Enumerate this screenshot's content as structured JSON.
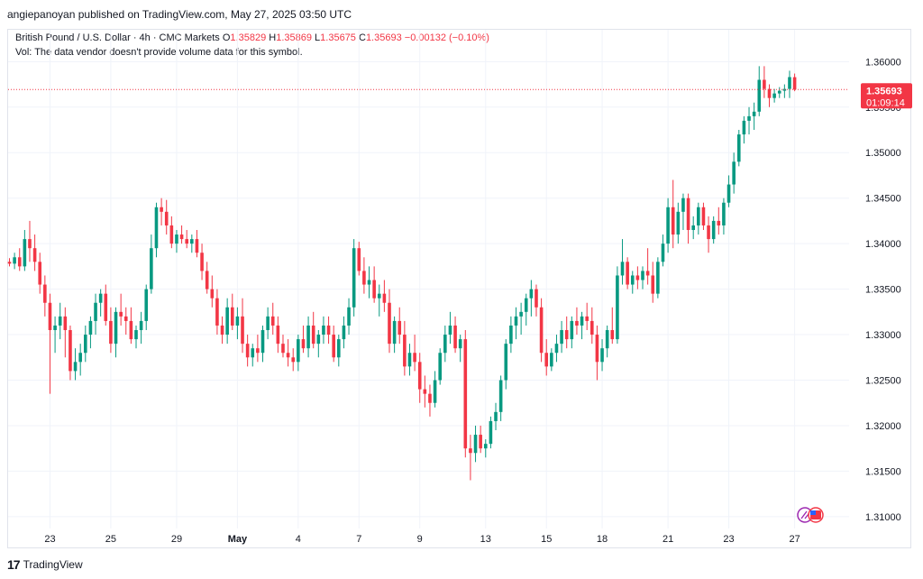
{
  "header": {
    "publisher": "angiepanoyan published on TradingView.com, May 27, 2025 03:50 UTC"
  },
  "legend": {
    "symbol": "British Pound / U.S. Dollar · 4h · CMC Markets",
    "o_label": "O",
    "o": "1.35829",
    "h_label": "H",
    "h": "1.35869",
    "l_label": "L",
    "l": "1.35675",
    "c_label": "C",
    "c": "1.35693",
    "change": "−0.00132 (−0.10%)",
    "vol_note": "Vol: The data vendor doesn't provide volume data for this symbol."
  },
  "price_tag": {
    "price": "1.35693",
    "countdown": "01:09:14",
    "color": "#f23645"
  },
  "colors": {
    "up": "#089981",
    "down": "#f23645",
    "grid": "#f0f3fa"
  },
  "footer": {
    "brand": "TradingView"
  },
  "chart_data": {
    "type": "candlestick",
    "y_ticks": [
      "1.36000",
      "1.35500",
      "1.35000",
      "1.34500",
      "1.34000",
      "1.33500",
      "1.33000",
      "1.32500",
      "1.32000",
      "1.31500",
      "1.31000"
    ],
    "ylim": [
      1.3087,
      1.3635
    ],
    "x_ticks": [
      {
        "label": "23",
        "i": 8
      },
      {
        "label": "25",
        "i": 20
      },
      {
        "label": "29",
        "i": 33
      },
      {
        "label": "May",
        "i": 45
      },
      {
        "label": "4",
        "i": 57
      },
      {
        "label": "7",
        "i": 69
      },
      {
        "label": "9",
        "i": 81
      },
      {
        "label": "13",
        "i": 94
      },
      {
        "label": "15",
        "i": 106
      },
      {
        "label": "18",
        "i": 117
      },
      {
        "label": "21",
        "i": 130
      },
      {
        "label": "23",
        "i": 142
      },
      {
        "label": "27",
        "i": 155
      }
    ],
    "last_close": 1.35693,
    "ohlc": [
      [
        1.338,
        1.3384,
        1.3375,
        1.3378
      ],
      [
        1.3378,
        1.339,
        1.3372,
        1.3385
      ],
      [
        1.3385,
        1.3395,
        1.337,
        1.3375
      ],
      [
        1.3375,
        1.3415,
        1.337,
        1.3405
      ],
      [
        1.3405,
        1.3425,
        1.338,
        1.3395
      ],
      [
        1.3395,
        1.341,
        1.337,
        1.338
      ],
      [
        1.338,
        1.339,
        1.3345,
        1.3355
      ],
      [
        1.3355,
        1.3365,
        1.332,
        1.3335
      ],
      [
        1.3335,
        1.3345,
        1.3235,
        1.3305
      ],
      [
        1.3305,
        1.332,
        1.328,
        1.331
      ],
      [
        1.331,
        1.3335,
        1.3295,
        1.332
      ],
      [
        1.332,
        1.333,
        1.3275,
        1.3305
      ],
      [
        1.3305,
        1.331,
        1.325,
        1.326
      ],
      [
        1.326,
        1.3285,
        1.325,
        1.327
      ],
      [
        1.327,
        1.329,
        1.3255,
        1.328
      ],
      [
        1.328,
        1.331,
        1.327,
        1.33
      ],
      [
        1.33,
        1.332,
        1.3285,
        1.3315
      ],
      [
        1.3315,
        1.3345,
        1.33,
        1.3335
      ],
      [
        1.3335,
        1.335,
        1.332,
        1.3345
      ],
      [
        1.3345,
        1.3355,
        1.331,
        1.3315
      ],
      [
        1.3315,
        1.333,
        1.328,
        1.329
      ],
      [
        1.329,
        1.333,
        1.3275,
        1.3325
      ],
      [
        1.3325,
        1.3345,
        1.331,
        1.332
      ],
      [
        1.332,
        1.333,
        1.33,
        1.3315
      ],
      [
        1.3315,
        1.333,
        1.329,
        1.3295
      ],
      [
        1.3295,
        1.331,
        1.3285,
        1.3305
      ],
      [
        1.3305,
        1.3325,
        1.329,
        1.3315
      ],
      [
        1.3315,
        1.3355,
        1.3305,
        1.335
      ],
      [
        1.335,
        1.341,
        1.3345,
        1.3395
      ],
      [
        1.3395,
        1.3445,
        1.3385,
        1.344
      ],
      [
        1.344,
        1.345,
        1.342,
        1.3435
      ],
      [
        1.3435,
        1.3448,
        1.341,
        1.342
      ],
      [
        1.342,
        1.343,
        1.3395,
        1.34
      ],
      [
        1.34,
        1.3415,
        1.339,
        1.341
      ],
      [
        1.341,
        1.342,
        1.34,
        1.3405
      ],
      [
        1.3405,
        1.3415,
        1.3395,
        1.34
      ],
      [
        1.34,
        1.341,
        1.339,
        1.3405
      ],
      [
        1.3405,
        1.3415,
        1.3385,
        1.339
      ],
      [
        1.339,
        1.34,
        1.336,
        1.337
      ],
      [
        1.337,
        1.338,
        1.3345,
        1.335
      ],
      [
        1.335,
        1.3365,
        1.333,
        1.334
      ],
      [
        1.334,
        1.335,
        1.33,
        1.331
      ],
      [
        1.331,
        1.332,
        1.329,
        1.33
      ],
      [
        1.33,
        1.334,
        1.329,
        1.333
      ],
      [
        1.333,
        1.3345,
        1.3305,
        1.331
      ],
      [
        1.331,
        1.333,
        1.3295,
        1.332
      ],
      [
        1.332,
        1.334,
        1.328,
        1.329
      ],
      [
        1.329,
        1.33,
        1.3265,
        1.3275
      ],
      [
        1.3275,
        1.329,
        1.3265,
        1.3285
      ],
      [
        1.3285,
        1.33,
        1.327,
        1.328
      ],
      [
        1.328,
        1.331,
        1.327,
        1.3305
      ],
      [
        1.3305,
        1.333,
        1.3295,
        1.332
      ],
      [
        1.332,
        1.3335,
        1.33,
        1.331
      ],
      [
        1.331,
        1.332,
        1.328,
        1.329
      ],
      [
        1.329,
        1.33,
        1.3275,
        1.328
      ],
      [
        1.328,
        1.3295,
        1.3265,
        1.3275
      ],
      [
        1.3275,
        1.3285,
        1.326,
        1.327
      ],
      [
        1.327,
        1.33,
        1.326,
        1.3295
      ],
      [
        1.3295,
        1.331,
        1.328,
        1.3285
      ],
      [
        1.3285,
        1.332,
        1.3275,
        1.331
      ],
      [
        1.331,
        1.3325,
        1.3285,
        1.329
      ],
      [
        1.329,
        1.3305,
        1.3275,
        1.33
      ],
      [
        1.33,
        1.332,
        1.329,
        1.331
      ],
      [
        1.331,
        1.332,
        1.329,
        1.33
      ],
      [
        1.33,
        1.331,
        1.327,
        1.3275
      ],
      [
        1.3275,
        1.33,
        1.3265,
        1.3295
      ],
      [
        1.3295,
        1.332,
        1.3285,
        1.331
      ],
      [
        1.331,
        1.334,
        1.33,
        1.333
      ],
      [
        1.333,
        1.3405,
        1.332,
        1.3395
      ],
      [
        1.3395,
        1.3402,
        1.3365,
        1.337
      ],
      [
        1.337,
        1.3385,
        1.3345,
        1.3355
      ],
      [
        1.3355,
        1.3375,
        1.334,
        1.336
      ],
      [
        1.336,
        1.3375,
        1.3335,
        1.334
      ],
      [
        1.334,
        1.3355,
        1.332,
        1.3345
      ],
      [
        1.3345,
        1.336,
        1.3325,
        1.3335
      ],
      [
        1.3335,
        1.335,
        1.328,
        1.329
      ],
      [
        1.329,
        1.332,
        1.328,
        1.3315
      ],
      [
        1.3315,
        1.333,
        1.329,
        1.33
      ],
      [
        1.33,
        1.3315,
        1.3255,
        1.3265
      ],
      [
        1.3265,
        1.329,
        1.3255,
        1.328
      ],
      [
        1.328,
        1.33,
        1.326,
        1.327
      ],
      [
        1.327,
        1.328,
        1.3225,
        1.324
      ],
      [
        1.324,
        1.3255,
        1.322,
        1.3235
      ],
      [
        1.3235,
        1.3245,
        1.321,
        1.3225
      ],
      [
        1.3225,
        1.326,
        1.322,
        1.325
      ],
      [
        1.325,
        1.3285,
        1.3245,
        1.328
      ],
      [
        1.328,
        1.331,
        1.327,
        1.33
      ],
      [
        1.33,
        1.3325,
        1.329,
        1.331
      ],
      [
        1.331,
        1.332,
        1.328,
        1.3285
      ],
      [
        1.3285,
        1.33,
        1.327,
        1.3295
      ],
      [
        1.3295,
        1.3305,
        1.3165,
        1.3175
      ],
      [
        1.3175,
        1.319,
        1.314,
        1.317
      ],
      [
        1.317,
        1.32,
        1.316,
        1.319
      ],
      [
        1.319,
        1.32,
        1.317,
        1.3175
      ],
      [
        1.3175,
        1.3185,
        1.3165,
        1.318
      ],
      [
        1.318,
        1.321,
        1.3175,
        1.3205
      ],
      [
        1.3205,
        1.3225,
        1.3195,
        1.3215
      ],
      [
        1.3215,
        1.3255,
        1.3205,
        1.325
      ],
      [
        1.325,
        1.3295,
        1.324,
        1.329
      ],
      [
        1.329,
        1.332,
        1.328,
        1.331
      ],
      [
        1.331,
        1.333,
        1.3295,
        1.332
      ],
      [
        1.332,
        1.3335,
        1.33,
        1.3325
      ],
      [
        1.3325,
        1.3345,
        1.331,
        1.334
      ],
      [
        1.334,
        1.336,
        1.332,
        1.335
      ],
      [
        1.335,
        1.3355,
        1.332,
        1.333
      ],
      [
        1.333,
        1.334,
        1.327,
        1.328
      ],
      [
        1.328,
        1.3295,
        1.3255,
        1.3265
      ],
      [
        1.3265,
        1.3285,
        1.326,
        1.328
      ],
      [
        1.328,
        1.33,
        1.327,
        1.329
      ],
      [
        1.329,
        1.3315,
        1.328,
        1.3305
      ],
      [
        1.3305,
        1.332,
        1.3285,
        1.3295
      ],
      [
        1.3295,
        1.332,
        1.3285,
        1.3315
      ],
      [
        1.3315,
        1.333,
        1.33,
        1.331
      ],
      [
        1.331,
        1.3325,
        1.3295,
        1.332
      ],
      [
        1.332,
        1.3335,
        1.3305,
        1.3315
      ],
      [
        1.3315,
        1.333,
        1.329,
        1.33
      ],
      [
        1.33,
        1.331,
        1.325,
        1.327
      ],
      [
        1.327,
        1.3295,
        1.326,
        1.3285
      ],
      [
        1.3285,
        1.331,
        1.3275,
        1.3305
      ],
      [
        1.3305,
        1.333,
        1.329,
        1.3295
      ],
      [
        1.3295,
        1.3375,
        1.329,
        1.3365
      ],
      [
        1.3365,
        1.3405,
        1.3355,
        1.338
      ],
      [
        1.338,
        1.3385,
        1.335,
        1.3355
      ],
      [
        1.3355,
        1.337,
        1.3345,
        1.3365
      ],
      [
        1.3365,
        1.3375,
        1.335,
        1.336
      ],
      [
        1.336,
        1.3375,
        1.335,
        1.337
      ],
      [
        1.337,
        1.3395,
        1.3355,
        1.3365
      ],
      [
        1.3365,
        1.338,
        1.3335,
        1.3345
      ],
      [
        1.3345,
        1.3385,
        1.334,
        1.338
      ],
      [
        1.338,
        1.341,
        1.3375,
        1.34
      ],
      [
        1.34,
        1.345,
        1.339,
        1.344
      ],
      [
        1.344,
        1.347,
        1.3395,
        1.341
      ],
      [
        1.341,
        1.3445,
        1.34,
        1.3435
      ],
      [
        1.3435,
        1.3455,
        1.3415,
        1.345
      ],
      [
        1.345,
        1.3455,
        1.34,
        1.3415
      ],
      [
        1.3415,
        1.343,
        1.3405,
        1.342
      ],
      [
        1.342,
        1.3445,
        1.341,
        1.344
      ],
      [
        1.344,
        1.3445,
        1.3415,
        1.342
      ],
      [
        1.342,
        1.343,
        1.339,
        1.3405
      ],
      [
        1.3405,
        1.343,
        1.34,
        1.3425
      ],
      [
        1.3425,
        1.344,
        1.341,
        1.342
      ],
      [
        1.342,
        1.345,
        1.341,
        1.3445
      ],
      [
        1.3445,
        1.3475,
        1.344,
        1.3465
      ],
      [
        1.3465,
        1.35,
        1.3455,
        1.349
      ],
      [
        1.349,
        1.3525,
        1.3485,
        1.352
      ],
      [
        1.352,
        1.354,
        1.351,
        1.3535
      ],
      [
        1.3535,
        1.355,
        1.352,
        1.354
      ],
      [
        1.354,
        1.3555,
        1.3525,
        1.3545
      ],
      [
        1.3545,
        1.3595,
        1.354,
        1.358
      ],
      [
        1.358,
        1.3595,
        1.356,
        1.357
      ],
      [
        1.357,
        1.3575,
        1.355,
        1.356
      ],
      [
        1.356,
        1.357,
        1.3555,
        1.3565
      ],
      [
        1.3565,
        1.3572,
        1.356,
        1.3568
      ],
      [
        1.3568,
        1.3575,
        1.356,
        1.357
      ],
      [
        1.357,
        1.359,
        1.356,
        1.3583
      ],
      [
        1.35829,
        1.35869,
        1.35675,
        1.35693
      ]
    ]
  }
}
